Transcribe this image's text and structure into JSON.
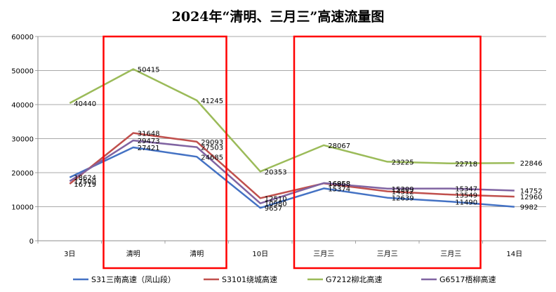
{
  "chart_data": {
    "type": "line",
    "title": "2024年“清明、三月三”高速流量图",
    "xlabel": "",
    "ylabel": "",
    "categories": [
      "3日",
      "清明",
      "清明",
      "10日",
      "三月三",
      "三月三",
      "三月三",
      "14日"
    ],
    "ylim": [
      0,
      60000
    ],
    "yticks": [
      0,
      10000,
      20000,
      30000,
      40000,
      50000,
      60000
    ],
    "grid": true,
    "legend_position": "bottom",
    "series": [
      {
        "name": "S31三南高速（凤山段）",
        "color": "#4472c4",
        "values": [
          18624,
          27421,
          24685,
          9657,
          15374,
          12639,
          11490,
          9982
        ]
      },
      {
        "name": "S3101绕城高速",
        "color": "#c0504d",
        "values": [
          16719,
          31648,
          29093,
          12510,
          16868,
          14512,
          13549,
          12960
        ]
      },
      {
        "name": "G7212柳北高速",
        "color": "#9bbb59",
        "values": [
          40440,
          50415,
          41245,
          20353,
          28067,
          23225,
          22718,
          22846
        ]
      },
      {
        "name": "G6517梧柳高速",
        "color": "#8064a2",
        "values": [
          17500,
          29473,
          27503,
          10980,
          16958,
          15309,
          15347,
          14752
        ]
      }
    ],
    "highlight_boxes": [
      {
        "from_category_index": 1,
        "to_category_index": 2,
        "color": "#ff0000"
      },
      {
        "from_category_index": 4,
        "to_category_index": 6,
        "color": "#ff0000"
      }
    ]
  }
}
